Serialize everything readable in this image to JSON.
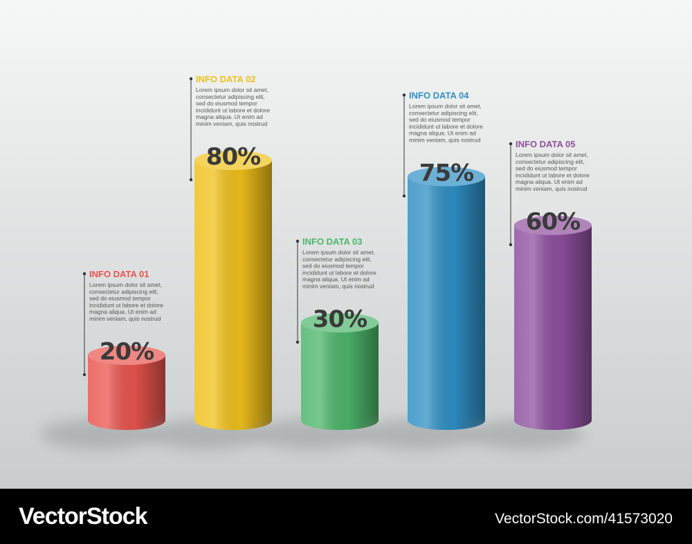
{
  "chart_data": {
    "type": "cylinder-bar",
    "categories": [
      "INFO DATA 01",
      "INFO DATA 02",
      "INFO DATA 03",
      "INFO DATA 04",
      "INFO DATA 05"
    ],
    "values": [
      20,
      80,
      30,
      75,
      60
    ],
    "value_labels": [
      "20%",
      "80%",
      "30%",
      "75%",
      "60%"
    ],
    "colors": [
      "#e8544e",
      "#f0c01a",
      "#4cb56a",
      "#2f8fc4",
      "#8e4f9e"
    ],
    "descriptions": [
      [
        "Lorem ipsum dolor sit amet,",
        "consectetur adipiscing elit,",
        "sed do eiusmod tempor",
        "incididunt ut labore et dolore",
        "magna aliqua. Ut enim ad",
        "minim veniam, quis nostrud"
      ],
      [
        "Lorem ipsum dolor sit amet,",
        "consectetur adipiscing elit,",
        "sed do eiusmod tempor",
        "incididunt ut labore et dolore",
        "magna aliqua. Ut enim ad",
        "minim veniam, quis nostrud"
      ],
      [
        "Lorem ipsum dolor sit amet,",
        "consectetur adipiscing elit,",
        "sed do eiusmod tempor",
        "incididunt ut labore et dolore",
        "magna aliqua. Ut enim ad",
        "minim veniam, quis nostrud"
      ],
      [
        "Lorem ipsum dolor sit amet,",
        "consectetur adipiscing elit,",
        "sed do eiusmod tempor",
        "incididunt ut labore et dolore",
        "magna aliqua. Ut enim ad",
        "minim veniam, quis nostrud"
      ],
      [
        "Lorem ipsum dolor sit amet,",
        "consectetur adipiscing elit,",
        "sed do eiusmod tempor",
        "incididunt ut labore et dolore",
        "magna aliqua. Ut enim ad",
        "minim veniam, quis nostrud"
      ]
    ]
  },
  "footer": {
    "brand": "VectorStock",
    "id": "VectorStock.com/41573020"
  }
}
